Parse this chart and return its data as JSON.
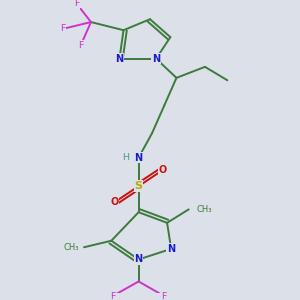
{
  "background_color": "#dce0e8",
  "bond_color": "#3d7a3d",
  "bond_width": 1.4,
  "atoms": {
    "N_color": "#1a1acc",
    "F_color": "#cc33cc",
    "S_color": "#bbaa00",
    "O_color": "#cc1111",
    "H_color": "#449999"
  },
  "figsize": [
    3.0,
    3.0
  ],
  "dpi": 100,
  "xlim": [
    0,
    6
  ],
  "ylim": [
    0,
    7
  ]
}
